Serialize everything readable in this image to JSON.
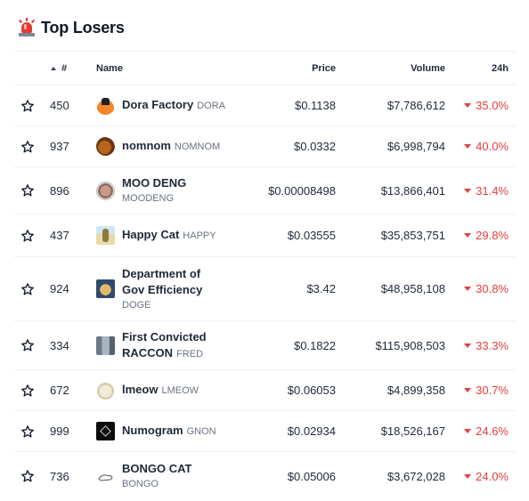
{
  "header": {
    "title": "Top Losers",
    "icon": "siren-icon"
  },
  "columns": {
    "rank": "#",
    "name": "Name",
    "price": "Price",
    "volume": "Volume",
    "change": "24h"
  },
  "colors": {
    "negative": "#e53e3e",
    "text": "#1f2937",
    "muted": "#6b7280",
    "border": "#eef0f3"
  },
  "rows": [
    {
      "rank": "450",
      "name": "Dora Factory",
      "symbol": "DORA",
      "price": "$0.1138",
      "volume": "$7,786,612",
      "change": "35.0%",
      "icon": "dora-factory-logo-icon"
    },
    {
      "rank": "937",
      "name": "nomnom",
      "symbol": "NOMNOM",
      "price": "$0.0332",
      "volume": "$6,998,794",
      "change": "40.0%",
      "icon": "nomnom-logo-icon"
    },
    {
      "rank": "896",
      "name": "MOO DENG",
      "symbol": "MOODENG",
      "price": "$0.00008498",
      "volume": "$13,866,401",
      "change": "31.4%",
      "icon": "moo-deng-logo-icon"
    },
    {
      "rank": "437",
      "name": "Happy Cat",
      "symbol": "HAPPY",
      "price": "$0.03555",
      "volume": "$35,853,751",
      "change": "29.8%",
      "icon": "happy-cat-logo-icon"
    },
    {
      "rank": "924",
      "name_line1": "Department of",
      "name_line2": "Gov Efficiency",
      "symbol": "DOGE",
      "price": "$3.42",
      "volume": "$48,958,108",
      "change": "30.8%",
      "icon": "doge-logo-icon"
    },
    {
      "rank": "334",
      "name_line1": "First Convicted",
      "name_line2": "RACCON",
      "symbol": "FRED",
      "price": "$0.1822",
      "volume": "$115,908,503",
      "change": "33.3%",
      "icon": "fred-logo-icon"
    },
    {
      "rank": "672",
      "name": "lmeow",
      "symbol": "LMEOW",
      "price": "$0.06053",
      "volume": "$4,899,358",
      "change": "30.7%",
      "icon": "lmeow-logo-icon"
    },
    {
      "rank": "999",
      "name": "Numogram",
      "symbol": "GNON",
      "price": "$0.02934",
      "volume": "$18,526,167",
      "change": "24.6%",
      "icon": "numogram-logo-icon"
    },
    {
      "rank": "736",
      "name": "BONGO CAT",
      "symbol": "BONGO",
      "price": "$0.05006",
      "volume": "$3,672,028",
      "change": "24.0%",
      "icon": "bongo-cat-logo-icon"
    }
  ]
}
